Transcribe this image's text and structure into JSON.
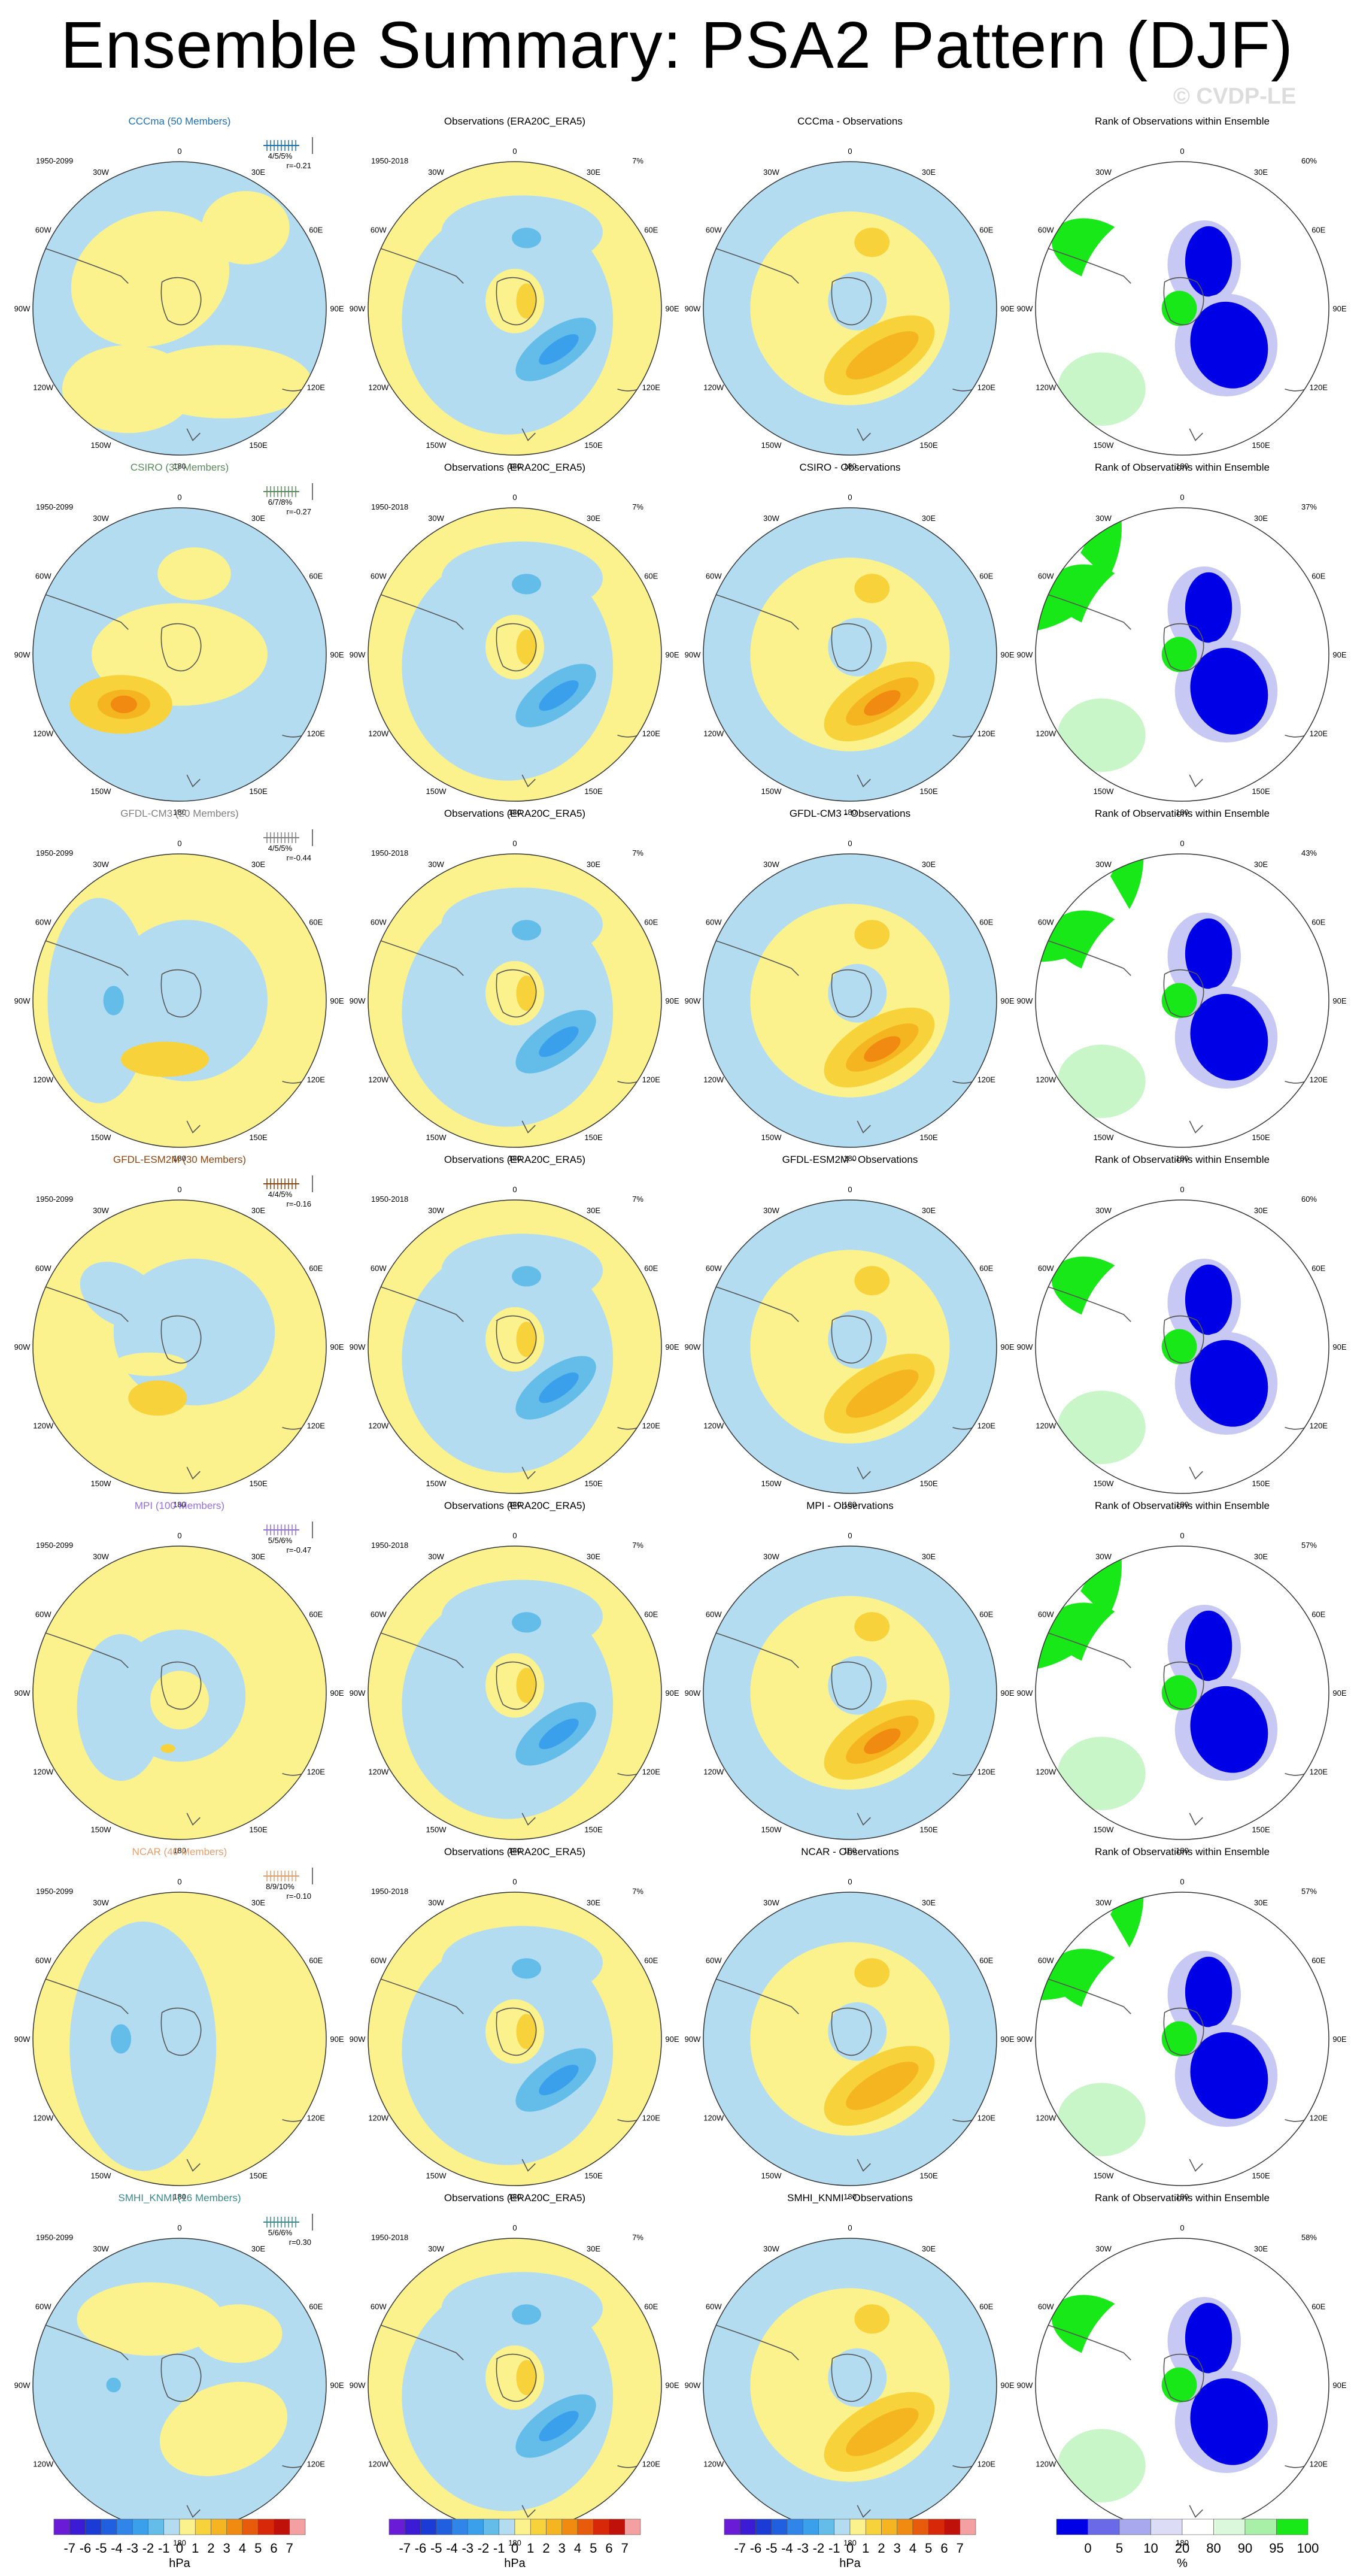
{
  "title": "Ensemble Summary: PSA2 Pattern (DJF)",
  "watermark": "© CVDP-LE",
  "longitude_labels": [
    "0",
    "30E",
    "60E",
    "90E",
    "120E",
    "150E",
    "180",
    "150W",
    "120W",
    "90W",
    "60W",
    "30W"
  ],
  "obs_period": "1950-2018",
  "obs_pct": "7%",
  "obs_title": "Observations (ERA20C_ERA5)",
  "rank_title": "Rank of Observations within Ensemble",
  "rows": [
    {
      "model": "CCCma",
      "members": "CCCma (50 Members)",
      "color": "#1f6fb0",
      "period": "1950-2099",
      "pct": "4/5/5%",
      "r": "r=-0.21",
      "diff_title": "CCCma - Observations",
      "rank_pct": "60%"
    },
    {
      "model": "CSIRO",
      "members": "CSIRO (30 Members)",
      "color": "#5a8a5a",
      "period": "1950-2099",
      "pct": "6/7/8%",
      "r": "r=-0.27",
      "diff_title": "CSIRO - Observations",
      "rank_pct": "37%"
    },
    {
      "model": "GFDL-CM3",
      "members": "GFDL-CM3 (20 Members)",
      "color": "#808080",
      "period": "1950-2099",
      "pct": "4/5/5%",
      "r": "r=-0.44",
      "diff_title": "GFDL-CM3 - Observations",
      "rank_pct": "43%"
    },
    {
      "model": "GFDL-ESM2M",
      "members": "GFDL-ESM2M (30 Members)",
      "color": "#8b4513",
      "period": "1950-2099",
      "pct": "4/4/5%",
      "r": "r=-0.16",
      "diff_title": "GFDL-ESM2M - Observations",
      "rank_pct": "60%"
    },
    {
      "model": "MPI",
      "members": "MPI (100 Members)",
      "color": "#9370db",
      "period": "1950-2099",
      "pct": "5/5/6%",
      "r": "r=-0.47",
      "diff_title": "MPI - Observations",
      "rank_pct": "57%"
    },
    {
      "model": "NCAR",
      "members": "NCAR (40 Members)",
      "color": "#e0a070",
      "period": "1950-2099",
      "pct": "8/9/10%",
      "r": "r=-0.10",
      "diff_title": "NCAR - Observations",
      "rank_pct": "57%"
    },
    {
      "model": "SMHI_KNMI",
      "members": "SMHI_KNMI (16 Members)",
      "color": "#3a8a8a",
      "period": "1950-2099",
      "pct": "5/6/6%",
      "r": "r=0.30",
      "diff_title": "SMHI_KNMI - Observations",
      "rank_pct": "58%"
    }
  ],
  "colorbar_hpa": {
    "labels": [
      "-7",
      "-6",
      "-5",
      "-4",
      "-3",
      "-2",
      "-1",
      "0",
      "1",
      "2",
      "3",
      "4",
      "5",
      "6",
      "7"
    ],
    "unit": "hPa",
    "colors": [
      "#6a1bd6",
      "#3b1bd6",
      "#1b3bd6",
      "#1f5fe0",
      "#2f85e8",
      "#3aa0ec",
      "#63bde8",
      "#b3dcf0",
      "#fbf28e",
      "#f7d23a",
      "#f5b520",
      "#f08a10",
      "#e85a0c",
      "#d8280a",
      "#c0100a",
      "#f4a0a0"
    ]
  },
  "colorbar_rank": {
    "labels": [
      "0",
      "5",
      "10",
      "20",
      "80",
      "90",
      "95",
      "100"
    ],
    "unit": "%",
    "colors": [
      "#0000e6",
      "#6a6ae8",
      "#a8a8ee",
      "#dcdcf6",
      "#ffffff",
      "#dcf8dc",
      "#a8f0a8",
      "#18e818"
    ]
  },
  "palette": {
    "pos1": "#fbf28e",
    "pos2": "#f7d23a",
    "pos3": "#f5b520",
    "pos4": "#f08a10",
    "neg1": "#b3dcf0",
    "neg2": "#63bde8",
    "neg3": "#3aa0ec",
    "rank_green": "#18e818",
    "rank_lightgreen": "#c8f6c8",
    "rank_blue": "#0000e6",
    "rank_lightblue": "#c8c8f4"
  }
}
